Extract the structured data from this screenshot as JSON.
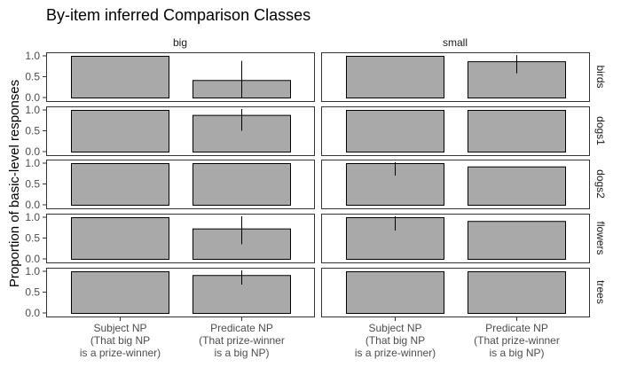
{
  "chart_data": {
    "type": "bar",
    "title": "By-item inferred Comparison Classes",
    "xlabel": "",
    "ylabel": "Proportion of basic-level responses",
    "ylim": [
      0,
      1.0
    ],
    "yticks": [
      "0.0",
      "0.5",
      "1.0"
    ],
    "grid": false,
    "facet_columns": [
      "big",
      "small"
    ],
    "facet_rows": [
      "birds",
      "dogs1",
      "dogs2",
      "flowers",
      "trees"
    ],
    "categories": [
      [
        "Subject NP",
        "(That big NP",
        "is a prize-winner)"
      ],
      [
        "Predicate NP",
        "(That prize-winner",
        "is a big NP)"
      ]
    ],
    "bar_color": "#a9a9a9",
    "panels": [
      {
        "row": "birds",
        "col": "big",
        "values": [
          1.0,
          0.42
        ],
        "errors": [
          null,
          [
            0.0,
            0.88
          ]
        ]
      },
      {
        "row": "birds",
        "col": "small",
        "values": [
          1.0,
          0.87
        ],
        "errors": [
          null,
          [
            0.58,
            1.02
          ]
        ]
      },
      {
        "row": "dogs1",
        "col": "big",
        "values": [
          1.0,
          0.88
        ],
        "errors": [
          null,
          [
            0.5,
            1.02
          ]
        ]
      },
      {
        "row": "dogs1",
        "col": "small",
        "values": [
          1.0,
          1.0
        ],
        "errors": [
          null,
          null
        ]
      },
      {
        "row": "dogs2",
        "col": "big",
        "values": [
          1.0,
          1.0
        ],
        "errors": [
          null,
          null
        ]
      },
      {
        "row": "dogs2",
        "col": "small",
        "values": [
          1.0,
          0.92
        ],
        "errors": [
          [
            0.7,
            1.02
          ],
          null
        ]
      },
      {
        "row": "flowers",
        "col": "big",
        "values": [
          1.0,
          0.73
        ],
        "errors": [
          null,
          [
            0.35,
            1.02
          ]
        ]
      },
      {
        "row": "flowers",
        "col": "small",
        "values": [
          1.0,
          0.91
        ],
        "errors": [
          [
            0.68,
            1.02
          ],
          null
        ]
      },
      {
        "row": "trees",
        "col": "big",
        "values": [
          1.0,
          0.91
        ],
        "errors": [
          null,
          [
            0.68,
            1.02
          ]
        ]
      },
      {
        "row": "trees",
        "col": "small",
        "values": [
          1.0,
          1.0
        ],
        "errors": [
          null,
          null
        ]
      }
    ]
  }
}
